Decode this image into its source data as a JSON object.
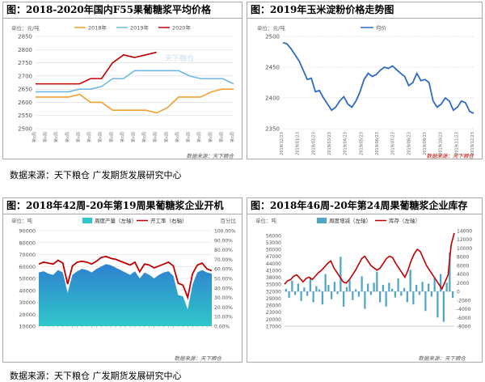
{
  "panels": [
    {
      "title": "图：2018-2020年国内F55果葡糖浆平均价格"
    },
    {
      "title": "图：2019年玉米淀粉价格走势图"
    },
    {
      "title": "图：2018年42周-20年第19周果葡糖浆企业开机"
    },
    {
      "title": "图：2018年46周-20年第24周果葡糖浆企业库存"
    }
  ],
  "source_text": "数据来源：天下粮仓  广发期货发展研究中心",
  "watermark": "天下粮仓",
  "chart_data": [
    {
      "type": "line",
      "unit": "单位：元/吨",
      "footnote": "数据来源：天下粮仓",
      "ylim": [
        2500,
        2850
      ],
      "yticks": [
        2500,
        2550,
        2600,
        2650,
        2700,
        2750,
        2800,
        2850
      ],
      "x_label_text": "第x周",
      "x_count": 19,
      "grid": true,
      "legend_position": "top",
      "series": [
        {
          "name": "2018年",
          "color": "#f0a030",
          "values": [
            2620,
            2620,
            2620,
            2620,
            2630,
            2600,
            2600,
            2570,
            2570,
            2570,
            2570,
            2560,
            2580,
            2620,
            2620,
            2620,
            2640,
            2650,
            2650
          ]
        },
        {
          "name": "2019年",
          "color": "#70b8e0",
          "values": [
            2640,
            2640,
            2640,
            2640,
            2650,
            2650,
            2660,
            2690,
            2690,
            2720,
            2720,
            2720,
            2720,
            2720,
            2700,
            2690,
            2690,
            2690,
            2670
          ]
        },
        {
          "name": "2020年",
          "color": "#c00000",
          "values": [
            2670,
            2670,
            2670,
            2670,
            2670,
            2690,
            2690,
            2750,
            2780,
            2770,
            2780,
            2790
          ]
        }
      ]
    },
    {
      "type": "line",
      "unit": "单位：元/吨",
      "footnote": "数据来源：天下粮仓",
      "ylim": [
        2350,
        2500
      ],
      "yticks": [
        2350,
        2400,
        2450,
        2500
      ],
      "xticks": [
        "2018/12/23",
        "2019/01/23",
        "2019/02/23",
        "2019/03/23",
        "2019/04/23",
        "2019/05/23",
        "2019/06/23",
        "2019/07/23",
        "2019/08/23",
        "2019/09/23",
        "2019/10/23",
        "2019/11/23",
        "2019/12/23"
      ],
      "grid": true,
      "legend_position": "top-right",
      "series": [
        {
          "name": "均价",
          "color": "#2e6bc4",
          "values": [
            2490,
            2488,
            2480,
            2470,
            2460,
            2445,
            2430,
            2432,
            2410,
            2412,
            2400,
            2390,
            2380,
            2385,
            2395,
            2402,
            2390,
            2385,
            2395,
            2410,
            2430,
            2440,
            2435,
            2438,
            2445,
            2450,
            2448,
            2452,
            2446,
            2440,
            2435,
            2420,
            2425,
            2440,
            2428,
            2430,
            2425,
            2395,
            2385,
            2390,
            2400,
            2395,
            2380,
            2385,
            2395,
            2392,
            2378,
            2375
          ]
        }
      ]
    },
    {
      "type": "area",
      "unit_left": "单位：吨",
      "unit_right": "百分比",
      "footnote": "数据来源：天下粮仓",
      "ylim_left": [
        10000,
        90000
      ],
      "yticks_left": [
        10000,
        20000,
        30000,
        40000,
        50000,
        60000,
        70000,
        80000,
        90000
      ],
      "ylim_right": [
        0,
        100
      ],
      "yticks_right": [
        "0.00%",
        "10.00%",
        "20.00%",
        "30.00%",
        "40.00%",
        "50.00%",
        "60.00%",
        "70.00%",
        "80.00%",
        "90.00%",
        "100.00%"
      ],
      "legend_position": "top",
      "series": [
        {
          "name": "周度产量（左轴）",
          "color": "#2fc7c9",
          "values": [
            55000,
            56000,
            54000,
            53000,
            57000,
            55000,
            38000,
            53000,
            56000,
            58000,
            57000,
            55000,
            58000,
            60000,
            62000,
            61000,
            59000,
            57000,
            55000,
            53000,
            56000,
            50000,
            55000,
            53000,
            50000,
            53000,
            55000,
            56000,
            52000,
            36000,
            35000,
            24000,
            45000,
            55000,
            57000,
            55000,
            54000
          ]
        },
        {
          "name": "开工率（右轴）",
          "color": "#c00000",
          "values": [
            65,
            67,
            66,
            65,
            69,
            66,
            44,
            63,
            67,
            68,
            67,
            65,
            68,
            72,
            73,
            71,
            70,
            68,
            66,
            64,
            67,
            57,
            65,
            64,
            61,
            63,
            65,
            67,
            63,
            45,
            43,
            30,
            55,
            64,
            66,
            60,
            58
          ]
        }
      ]
    },
    {
      "type": "bar",
      "unit_left": "单位：吨",
      "footnote": "数据来源：天下粮仓",
      "ylim_left": [
        17000,
        58000
      ],
      "yticks_left": [
        17000,
        20000,
        23000,
        26000,
        29000,
        32000,
        35000,
        38000,
        41000,
        44000,
        47000,
        50000,
        53000,
        56000
      ],
      "ylim_right": [
        -8000,
        14000
      ],
      "yticks_right": [
        -8000,
        -6000,
        -4000,
        -2000,
        0,
        2000,
        4000,
        6000,
        8000,
        10000,
        12000,
        14000
      ],
      "legend_position": "top",
      "series": [
        {
          "name": "周度增减（左轴）",
          "color": "#4fa6c9",
          "values": [
            600,
            -1500,
            2500,
            -800,
            1800,
            -2200,
            900,
            -1000,
            3000,
            -2500,
            1200,
            500,
            -3000,
            4000,
            1500,
            -1800,
            2200,
            -600,
            8000,
            -3500,
            1000,
            2600,
            -2000,
            500,
            -1200,
            3500,
            -4000,
            1800,
            -800,
            2000,
            4500,
            -2500,
            1500,
            -3500,
            2000,
            600,
            -1400,
            3000,
            -1000,
            800,
            -2500,
            5000,
            -3000,
            1500,
            -800,
            2200,
            -4500,
            1800,
            -1200,
            3000,
            -6000,
            4000,
            -7000,
            2000,
            9000,
            -1500
          ]
        },
        {
          "name": "库存（左轴）",
          "color": "#c00000",
          "values": [
            35000,
            36500,
            37000,
            38500,
            39000,
            37500,
            36000,
            37500,
            38000,
            37000,
            38500,
            40000,
            41000,
            42500,
            44000,
            45000,
            42000,
            40000,
            38000,
            36000,
            35500,
            37000,
            39000,
            41000,
            43500,
            46000,
            47000,
            45000,
            43000,
            42000,
            41000,
            42000,
            44000,
            46000,
            47000,
            46500,
            44000,
            42000,
            40000,
            38000,
            41000,
            45000,
            48000,
            50000,
            49000,
            46000,
            43000,
            41000,
            39000,
            37000,
            35000,
            33000,
            36000,
            39000,
            52000,
            57000
          ]
        }
      ]
    }
  ]
}
